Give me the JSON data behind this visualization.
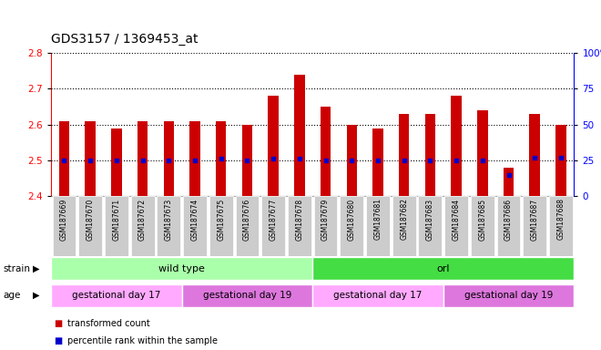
{
  "title": "GDS3157 / 1369453_at",
  "samples": [
    "GSM187669",
    "GSM187670",
    "GSM187671",
    "GSM187672",
    "GSM187673",
    "GSM187674",
    "GSM187675",
    "GSM187676",
    "GSM187677",
    "GSM187678",
    "GSM187679",
    "GSM187680",
    "GSM187681",
    "GSM187682",
    "GSM187683",
    "GSM187684",
    "GSM187685",
    "GSM187686",
    "GSM187687",
    "GSM187688"
  ],
  "transformed_counts": [
    2.61,
    2.61,
    2.59,
    2.61,
    2.61,
    2.61,
    2.61,
    2.6,
    2.68,
    2.74,
    2.65,
    2.6,
    2.59,
    2.63,
    2.63,
    2.68,
    2.64,
    2.48,
    2.63,
    2.6
  ],
  "percentile_ranks": [
    25,
    25,
    25,
    25,
    25,
    25,
    26,
    25,
    26,
    26,
    25,
    25,
    25,
    25,
    25,
    25,
    25,
    15,
    27,
    27
  ],
  "ylim_left": [
    2.4,
    2.8
  ],
  "ylim_right": [
    0,
    100
  ],
  "y_ticks_left": [
    2.4,
    2.5,
    2.6,
    2.7,
    2.8
  ],
  "y_ticks_right": [
    0,
    25,
    50,
    75,
    100
  ],
  "bar_bottom": 2.4,
  "bar_color": "#cc0000",
  "dot_color": "#0000cc",
  "grid_color": "#000000",
  "background_color": "#ffffff",
  "strain_groups": [
    {
      "label": "wild type",
      "start": 0,
      "end": 10,
      "color": "#aaffaa"
    },
    {
      "label": "orl",
      "start": 10,
      "end": 20,
      "color": "#44dd44"
    }
  ],
  "age_groups": [
    {
      "label": "gestational day 17",
      "start": 0,
      "end": 5,
      "color": "#ffaaff"
    },
    {
      "label": "gestational day 19",
      "start": 5,
      "end": 10,
      "color": "#dd77dd"
    },
    {
      "label": "gestational day 17",
      "start": 10,
      "end": 15,
      "color": "#ffaaff"
    },
    {
      "label": "gestational day 19",
      "start": 15,
      "end": 20,
      "color": "#dd77dd"
    }
  ],
  "legend_items": [
    {
      "label": "transformed count",
      "color": "#cc0000",
      "marker": "s"
    },
    {
      "label": "percentile rank within the sample",
      "color": "#0000cc",
      "marker": "s"
    }
  ],
  "xticklabel_bg": "#cccccc",
  "bar_width": 0.4
}
